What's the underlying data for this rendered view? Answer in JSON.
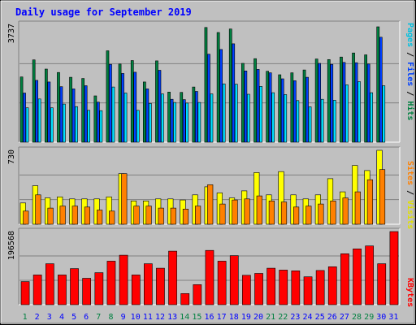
{
  "chart_data": {
    "type": "bar",
    "title": "Daily usage for September 2019",
    "x": [
      "1",
      "2",
      "3",
      "4",
      "5",
      "6",
      "7",
      "8",
      "9",
      "10",
      "11",
      "12",
      "13",
      "14",
      "15",
      "16",
      "17",
      "18",
      "19",
      "20",
      "21",
      "22",
      "23",
      "24",
      "25",
      "26",
      "27",
      "28",
      "29",
      "30",
      "31"
    ],
    "weekend_days": [
      1,
      7,
      8,
      14,
      15,
      21,
      22,
      28,
      29
    ],
    "panels": [
      {
        "name": "hits-files-pages",
        "ymax_label": "3737",
        "ymax": 3737,
        "grid": true,
        "series": [
          {
            "name": "Hits",
            "color": "#008040",
            "values": [
              2070,
              2610,
              2320,
              2210,
              2060,
              2020,
              1470,
              2900,
              2480,
              2590,
              1910,
              2580,
              1590,
              1580,
              1750,
              3640,
              3480,
              3590,
              2500,
              2650,
              2250,
              2140,
              2200,
              2290,
              2640,
              2620,
              2700,
              2830,
              2770,
              3660,
              0
            ]
          },
          {
            "name": "Files",
            "color": "#0040ff",
            "values": [
              1560,
              1960,
              1910,
              1760,
              1690,
              1790,
              1270,
              2470,
              2180,
              2220,
              1690,
              2280,
              1360,
              1350,
              1610,
              2790,
              2940,
              3120,
              2260,
              2310,
              2200,
              2010,
              1950,
              2060,
              2500,
              2470,
              2530,
              2520,
              2480,
              3330,
              0
            ]
          },
          {
            "name": "Pages",
            "color": "#00e0ff",
            "values": [
              1090,
              1370,
              1090,
              1210,
              1130,
              1010,
              1000,
              1750,
              1560,
              1010,
              1230,
              1530,
              1260,
              1240,
              1260,
              1530,
              1850,
              1840,
              1520,
              1770,
              1570,
              1510,
              1320,
              1120,
              1360,
              1330,
              1820,
              1920,
              1570,
              1790,
              0
            ]
          }
        ]
      },
      {
        "name": "visits-sites",
        "ymax_label": "730",
        "ymax": 730,
        "grid": true,
        "series": [
          {
            "name": "Visits",
            "color": "#ffff00",
            "values": [
              210,
              380,
              260,
              270,
              250,
              250,
              250,
              270,
              500,
              230,
              230,
              250,
              250,
              240,
              290,
              370,
              310,
              260,
              330,
              510,
              290,
              520,
              290,
              250,
              290,
              450,
              320,
              580,
              530,
              730,
              0
            ]
          },
          {
            "name": "Sites",
            "color": "#ff8000",
            "values": [
              130,
              290,
              160,
              180,
              180,
              170,
              140,
              130,
              500,
              180,
              180,
              160,
              160,
              150,
              180,
              390,
              200,
              240,
              250,
              280,
              230,
              220,
              170,
              180,
              200,
              230,
              260,
              320,
              440,
              540,
              0
            ]
          }
        ]
      },
      {
        "name": "kbytes",
        "ymax_label": "196568",
        "ymax": 196568,
        "grid": true,
        "series": [
          {
            "name": "KBytes",
            "color": "#ff0000",
            "values": [
              62000,
              80000,
              110000,
              80000,
              97000,
              71000,
              86000,
              117000,
              133000,
              80000,
              110000,
              98000,
              144000,
              30000,
              54000,
              146000,
              117000,
              132000,
              79000,
              84000,
              98000,
              93000,
              91000,
              75000,
              92000,
              102000,
              137000,
              150000,
              158000,
              110000,
              196568
            ]
          }
        ]
      }
    ],
    "legend_right": [
      {
        "text": "Pages",
        "color": "#00c0e0"
      },
      {
        "text": "/",
        "color": "#000000"
      },
      {
        "text": "Files",
        "color": "#0040ff"
      },
      {
        "text": "/",
        "color": "#000000"
      },
      {
        "text": "Hits",
        "color": "#008040"
      },
      {
        "text": "Sites",
        "color": "#ff8000"
      },
      {
        "text": "/",
        "color": "#000000"
      },
      {
        "text": "Visits",
        "color": "#e0e000"
      },
      {
        "text": "KBytes",
        "color": "#ff0000"
      }
    ]
  },
  "colors": {
    "background": "#c0c0c0",
    "title": "#0000ff",
    "weekend_label": "#008040",
    "weekday_label": "#0000ff"
  }
}
